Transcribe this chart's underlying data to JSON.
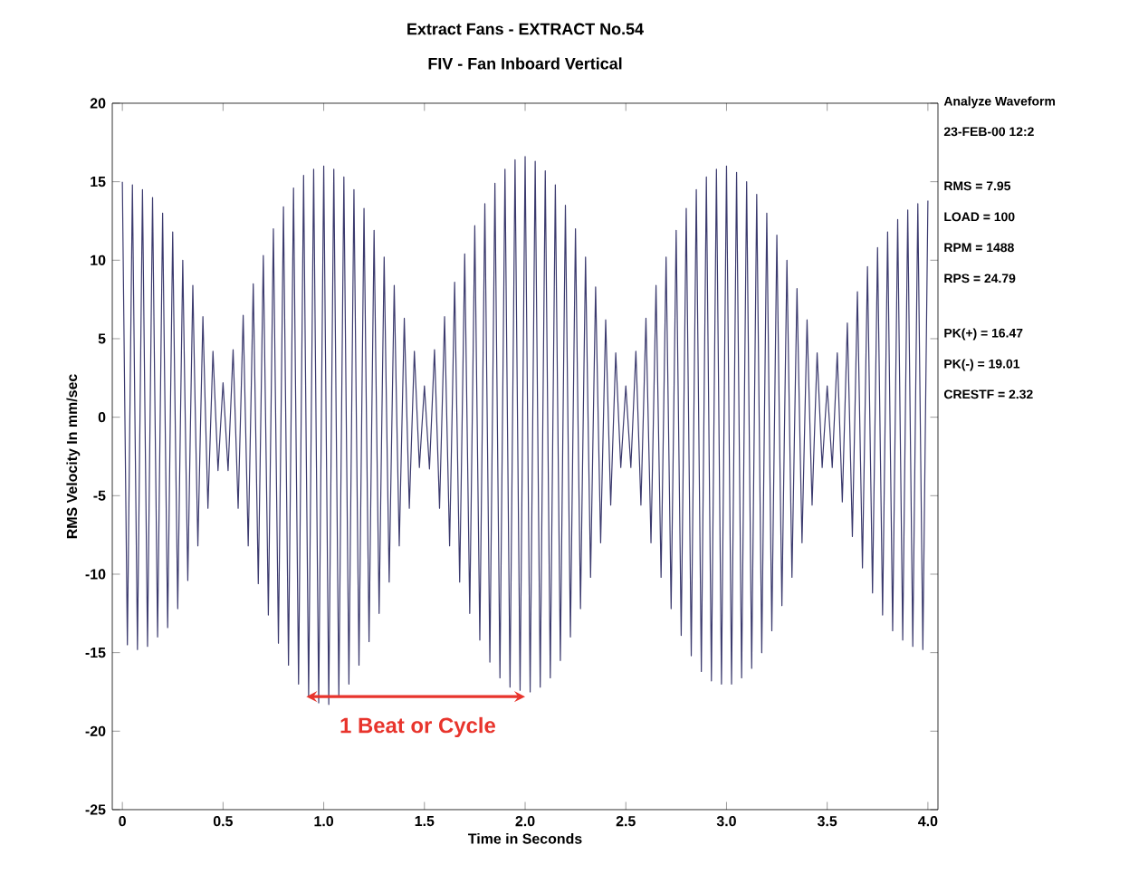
{
  "chart_data": {
    "type": "line",
    "title": "Extract Fans - EXTRACT No.54",
    "subtitle": "FIV - Fan Inboard Vertical",
    "xlabel": "Time in Seconds",
    "ylabel": "RMS Velocity In mm/sec",
    "xlim": [
      -0.05,
      4.05
    ],
    "ylim": [
      -25,
      20
    ],
    "xticks": [
      0,
      0.5,
      {
        "value": 1,
        "label": "1.0"
      },
      1.5,
      {
        "value": 2,
        "label": "2.0"
      },
      2.5,
      {
        "value": 3,
        "label": "3.0"
      },
      3.5,
      {
        "value": 4,
        "label": "4.0"
      }
    ],
    "yticks": [
      -25,
      -20,
      -15,
      -10,
      -5,
      0,
      5,
      10,
      15,
      20
    ],
    "grid": false,
    "annotations": [
      "Analyze Waveform",
      "23-FEB-00 12:2",
      "RMS = 7.95",
      "LOAD = 100",
      "RPM = 1488",
      "RPS = 24.79",
      "PK(+) = 16.47",
      "PK(-) = 19.01",
      "CRESTF = 2.32",
      "1 Beat or Cycle"
    ],
    "series": [
      {
        "color": "#3b3a6e",
        "x": [
          0,
          0.025,
          0.05,
          0.075,
          0.1,
          0.125,
          0.15,
          0.175,
          0.2,
          0.225,
          0.25,
          0.275,
          0.3,
          0.325,
          0.35,
          0.375,
          0.4,
          0.425,
          0.45,
          0.475,
          0.5,
          0.525,
          0.55,
          0.575,
          0.6,
          0.625,
          0.65,
          0.675,
          0.7,
          0.725,
          0.75,
          0.775,
          0.8,
          0.825,
          0.85,
          0.875,
          0.9,
          0.925,
          0.95,
          0.975,
          1,
          1.025,
          1.05,
          1.075,
          1.1,
          1.125,
          1.15,
          1.175,
          1.2,
          1.225,
          1.25,
          1.275,
          1.3,
          1.325,
          1.35,
          1.375,
          1.4,
          1.425,
          1.45,
          1.475,
          1.5,
          1.525,
          1.55,
          1.575,
          1.6,
          1.625,
          1.65,
          1.675,
          1.7,
          1.725,
          1.75,
          1.775,
          1.8,
          1.825,
          1.85,
          1.875,
          1.9,
          1.925,
          1.95,
          1.975,
          2,
          2.025,
          2.05,
          2.075,
          2.1,
          2.125,
          2.15,
          2.175,
          2.2,
          2.225,
          2.25,
          2.275,
          2.3,
          2.325,
          2.35,
          2.375,
          2.4,
          2.425,
          2.45,
          2.475,
          2.5,
          2.525,
          2.55,
          2.575,
          2.6,
          2.625,
          2.65,
          2.675,
          2.7,
          2.725,
          2.75,
          2.775,
          2.8,
          2.825,
          2.85,
          2.875,
          2.9,
          2.925,
          2.95,
          2.975,
          3,
          3.025,
          3.05,
          3.075,
          3.1,
          3.125,
          3.15,
          3.175,
          3.2,
          3.225,
          3.25,
          3.275,
          3.3,
          3.325,
          3.35,
          3.375,
          3.4,
          3.425,
          3.45,
          3.475,
          3.5,
          3.525,
          3.55,
          3.575,
          3.6,
          3.625,
          3.65,
          3.675,
          3.7,
          3.725,
          3.75,
          3.775,
          3.8,
          3.825,
          3.85,
          3.875,
          3.9,
          3.925,
          3.95,
          3.975,
          4
        ],
        "values": [
          15,
          -14.5,
          14.8,
          -14.8,
          14.5,
          -14.6,
          14,
          -14,
          13,
          -13.4,
          11.8,
          -12.2,
          10,
          -10.4,
          8.4,
          -8.2,
          6.4,
          -5.8,
          4.2,
          -3.4,
          2.2,
          -3.4,
          4.3,
          -5.8,
          6.5,
          -8.2,
          8.5,
          -10.6,
          10.3,
          -12.6,
          12,
          -14.4,
          13.4,
          -15.8,
          14.6,
          -17,
          15.4,
          -17.8,
          15.8,
          -18.2,
          16,
          -18.3,
          15.8,
          -17.8,
          15.3,
          -17,
          14.5,
          -15.8,
          13.3,
          -14.3,
          11.9,
          -12.5,
          10.2,
          -10.5,
          8.4,
          -8.2,
          6.3,
          -5.8,
          4.2,
          -3.2,
          2,
          -3.3,
          4.3,
          -5.8,
          6.4,
          -8.2,
          8.6,
          -10.5,
          10.4,
          -12.5,
          12.2,
          -14.2,
          13.6,
          -15.6,
          14.9,
          -16.6,
          15.8,
          -17.2,
          16.4,
          -17.4,
          16.6,
          -17.5,
          16.3,
          -17.2,
          15.7,
          -16.6,
          14.8,
          -15.5,
          13.5,
          -14,
          12,
          -12.2,
          10.2,
          -10.2,
          8.3,
          -8,
          6.2,
          -5.6,
          4.1,
          -3.2,
          2,
          -3.2,
          4.2,
          -5.6,
          6.3,
          -8,
          8.4,
          -10.2,
          10.2,
          -12.2,
          11.9,
          -13.9,
          13.3,
          -15.2,
          14.5,
          -16.2,
          15.3,
          -16.8,
          15.8,
          -17,
          16,
          -17,
          15.6,
          -16.6,
          15,
          -16,
          14.2,
          -15,
          13,
          -13.6,
          11.6,
          -12,
          10,
          -10.2,
          8.2,
          -8,
          6.2,
          -5.6,
          4.1,
          -3.2,
          2,
          -3.2,
          4.1,
          -5.4,
          6,
          -7.6,
          8,
          -9.6,
          9.6,
          -11.2,
          10.8,
          -12.6,
          11.8,
          -13.6,
          12.6,
          -14.2,
          13.2,
          -14.6,
          13.6,
          -14.8,
          13.8
        ]
      }
    ]
  }
}
